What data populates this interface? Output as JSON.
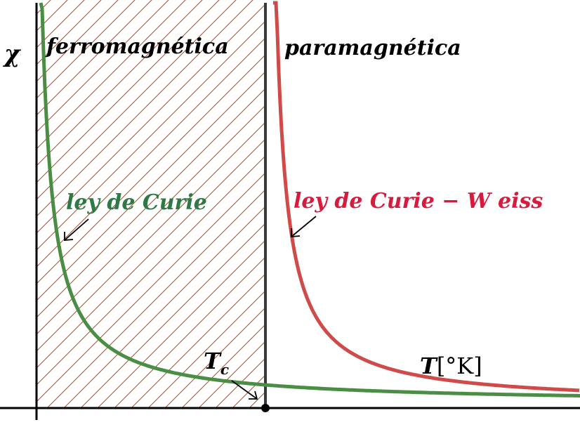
{
  "labels": {
    "y_axis": "χ",
    "ferro_region": "ferromagnética",
    "para_region": "paramagnética",
    "curie_law": "ley de Curie",
    "curie_weiss_law": "ley de Curie − W eiss",
    "tc": "T",
    "tc_sub": "c",
    "x_axis_prefix": "T",
    "x_axis_unit": "[°K]"
  },
  "colors": {
    "curie_curve": "#4a8e44",
    "curie_label": "#2e7a45",
    "curie_weiss_curve": "#d14a4a",
    "curie_weiss_label": "#d81b3c",
    "hatch": "#b5522a",
    "axis": "#000000",
    "tc_line": "#3a3a3a",
    "text": "#000000"
  }
}
